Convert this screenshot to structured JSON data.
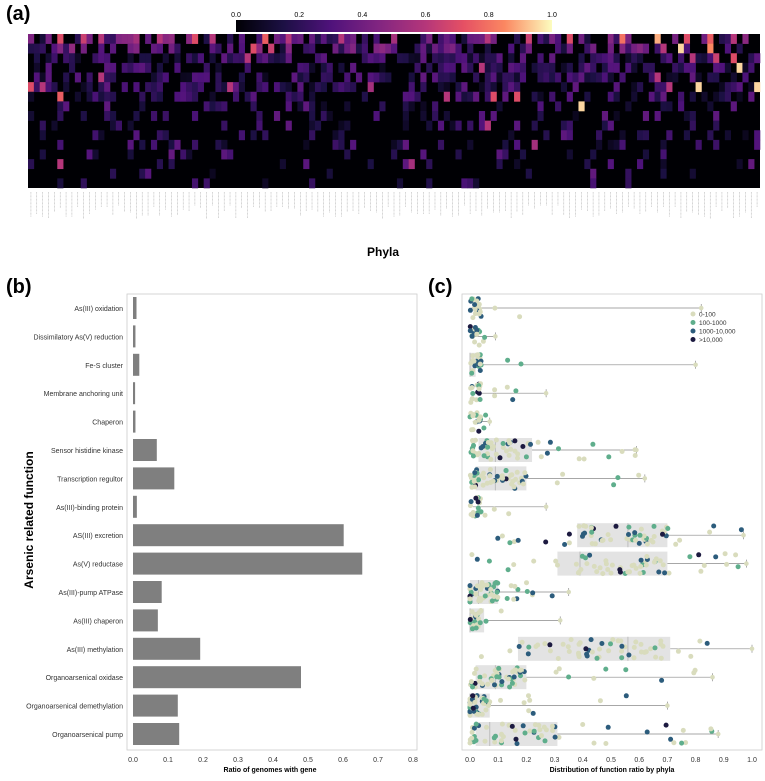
{
  "panel_a": {
    "label": "(a)",
    "colorbar_ticks": [
      "0.0",
      "0.2",
      "0.4",
      "0.6",
      "0.8",
      "1.0"
    ],
    "xlabel": "Phyla"
  },
  "panel_b": {
    "label": "(b)"
  },
  "panel_c": {
    "label": "(c)"
  },
  "chart_data": [
    {
      "type": "heatmap",
      "xlabel": "Phyla",
      "colorbar_range": [
        0,
        1
      ],
      "colormap": "magma",
      "n_rows": 16,
      "n_cols": 125,
      "hot_cells": [
        {
          "row": 0,
          "col": 5,
          "value": 0.7
        },
        {
          "row": 0,
          "col": 9,
          "value": 0.65
        },
        {
          "row": 0,
          "col": 12,
          "value": 0.6
        },
        {
          "row": 0,
          "col": 18,
          "value": 0.55
        },
        {
          "row": 0,
          "col": 22,
          "value": 0.6
        },
        {
          "row": 0,
          "col": 28,
          "value": 0.7
        },
        {
          "row": 0,
          "col": 31,
          "value": 0.6
        },
        {
          "row": 0,
          "col": 40,
          "value": 0.75
        },
        {
          "row": 0,
          "col": 44,
          "value": 0.6
        },
        {
          "row": 0,
          "col": 53,
          "value": 0.6
        },
        {
          "row": 0,
          "col": 62,
          "value": 0.55
        },
        {
          "row": 0,
          "col": 78,
          "value": 0.6
        },
        {
          "row": 0,
          "col": 85,
          "value": 0.65
        },
        {
          "row": 0,
          "col": 92,
          "value": 0.7
        },
        {
          "row": 0,
          "col": 101,
          "value": 0.8
        },
        {
          "row": 0,
          "col": 107,
          "value": 0.9
        },
        {
          "row": 0,
          "col": 112,
          "value": 0.7
        },
        {
          "row": 0,
          "col": 116,
          "value": 0.75
        },
        {
          "row": 0,
          "col": 120,
          "value": 0.6
        },
        {
          "row": 1,
          "col": 38,
          "value": 0.7
        },
        {
          "row": 1,
          "col": 41,
          "value": 0.65
        },
        {
          "row": 1,
          "col": 108,
          "value": 0.6
        },
        {
          "row": 1,
          "col": 111,
          "value": 0.95
        },
        {
          "row": 1,
          "col": 116,
          "value": 0.85
        },
        {
          "row": 2,
          "col": 37,
          "value": 0.6
        },
        {
          "row": 2,
          "col": 113,
          "value": 0.6
        },
        {
          "row": 2,
          "col": 117,
          "value": 0.65
        },
        {
          "row": 2,
          "col": 120,
          "value": 0.7
        },
        {
          "row": 3,
          "col": 77,
          "value": 0.6
        },
        {
          "row": 3,
          "col": 121,
          "value": 0.95
        },
        {
          "row": 4,
          "col": 12,
          "value": 0.6
        },
        {
          "row": 4,
          "col": 107,
          "value": 0.6
        },
        {
          "row": 5,
          "col": 0,
          "value": 0.7
        },
        {
          "row": 5,
          "col": 2,
          "value": 0.6
        },
        {
          "row": 5,
          "col": 34,
          "value": 0.6
        },
        {
          "row": 5,
          "col": 58,
          "value": 0.55
        },
        {
          "row": 5,
          "col": 109,
          "value": 0.6
        },
        {
          "row": 5,
          "col": 114,
          "value": 0.95
        },
        {
          "row": 5,
          "col": 124,
          "value": 0.95
        },
        {
          "row": 6,
          "col": 5,
          "value": 0.75
        },
        {
          "row": 6,
          "col": 71,
          "value": 0.6
        },
        {
          "row": 6,
          "col": 79,
          "value": 0.7
        },
        {
          "row": 6,
          "col": 83,
          "value": 0.7
        },
        {
          "row": 7,
          "col": 94,
          "value": 0.95
        },
        {
          "row": 9,
          "col": 78,
          "value": 0.6
        },
        {
          "row": 11,
          "col": 86,
          "value": 0.55
        },
        {
          "row": 13,
          "col": 5,
          "value": 0.6
        },
        {
          "row": 13,
          "col": 65,
          "value": 0.55
        }
      ]
    },
    {
      "type": "bar",
      "orientation": "horizontal",
      "ylabel": "Arsenic related function",
      "xlabel": "Ratio of genomes with gene",
      "xlim": [
        0,
        0.8
      ],
      "xticks": [
        "0.0",
        "0.1",
        "0.2",
        "0.3",
        "0.4",
        "0.5",
        "0.6",
        "0.7",
        "0.8"
      ],
      "categories": [
        "As(III) oxidation",
        "Dissimilatory As(V) reduction",
        "Fe-S cluster",
        "Membrane anchoring unit",
        "Chaperon",
        "Sensor histidine kinase",
        "Transcription regultor",
        "As(III)-binding protein",
        "AS(III) excretion",
        "As(V) reductase",
        "As(III)-pump ATPase",
        "As(III) chaperon",
        "As(III) methylation",
        "Organoarsenical oxidase",
        "Organoarsenical demethylation",
        "Organoarsenical pump"
      ],
      "values": [
        0.01,
        0.007,
        0.018,
        0.006,
        0.007,
        0.068,
        0.118,
        0.011,
        0.602,
        0.655,
        0.082,
        0.071,
        0.192,
        0.48,
        0.128,
        0.132
      ]
    },
    {
      "type": "scatter",
      "subtype": "box-strip",
      "xlabel": "Distribution of function ratio by phyla",
      "xlim": [
        0,
        1
      ],
      "xticks": [
        "0.0",
        "0.1",
        "0.2",
        "0.3",
        "0.4",
        "0.5",
        "0.6",
        "0.7",
        "0.8",
        "0.9",
        "1.0"
      ],
      "legend": {
        "position": "top-right",
        "entries": [
          "0-100",
          "100-1000",
          "1000-10,000",
          ">10,000"
        ],
        "colors": [
          "#d9dcbd",
          "#5fae8c",
          "#2c5c7c",
          "#1c1a40"
        ]
      },
      "boxes": [
        {
          "q1": 0,
          "median": 0,
          "q3": 0.005,
          "whisker_max": 0.82
        },
        {
          "q1": 0,
          "median": 0,
          "q3": 0.005,
          "whisker_max": 0.09
        },
        {
          "q1": 0,
          "median": 0,
          "q3": 0.02,
          "whisker_max": 0.8
        },
        {
          "q1": 0,
          "median": 0,
          "q3": 0.01,
          "whisker_max": 0.27
        },
        {
          "q1": 0,
          "median": 0,
          "q3": 0.01,
          "whisker_max": 0.07
        },
        {
          "q1": 0.03,
          "median": 0.09,
          "q3": 0.22,
          "whisker_max": 0.59
        },
        {
          "q1": 0.02,
          "median": 0.09,
          "q3": 0.2,
          "whisker_max": 0.62
        },
        {
          "q1": 0,
          "median": 0,
          "q3": 0.01,
          "whisker_max": 0.27
        },
        {
          "q1": 0.38,
          "median": 0.56,
          "q3": 0.7,
          "whisker_max": 0.97
        },
        {
          "q1": 0.31,
          "median": 0.39,
          "q3": 0.7,
          "whisker_max": 0.98
        },
        {
          "q1": 0,
          "median": 0.03,
          "q3": 0.1,
          "whisker_max": 0.35
        },
        {
          "q1": 0,
          "median": 0,
          "q3": 0.05,
          "whisker_max": 0.32
        },
        {
          "q1": 0.17,
          "median": 0.56,
          "q3": 0.71,
          "whisker_max": 1.0
        },
        {
          "q1": 0.02,
          "median": 0.09,
          "q3": 0.2,
          "whisker_max": 0.86
        },
        {
          "q1": 0,
          "median": 0,
          "q3": 0.07,
          "whisker_max": 0.7
        },
        {
          "q1": 0.02,
          "median": 0.07,
          "q3": 0.31,
          "whisker_max": 0.88
        }
      ]
    }
  ]
}
